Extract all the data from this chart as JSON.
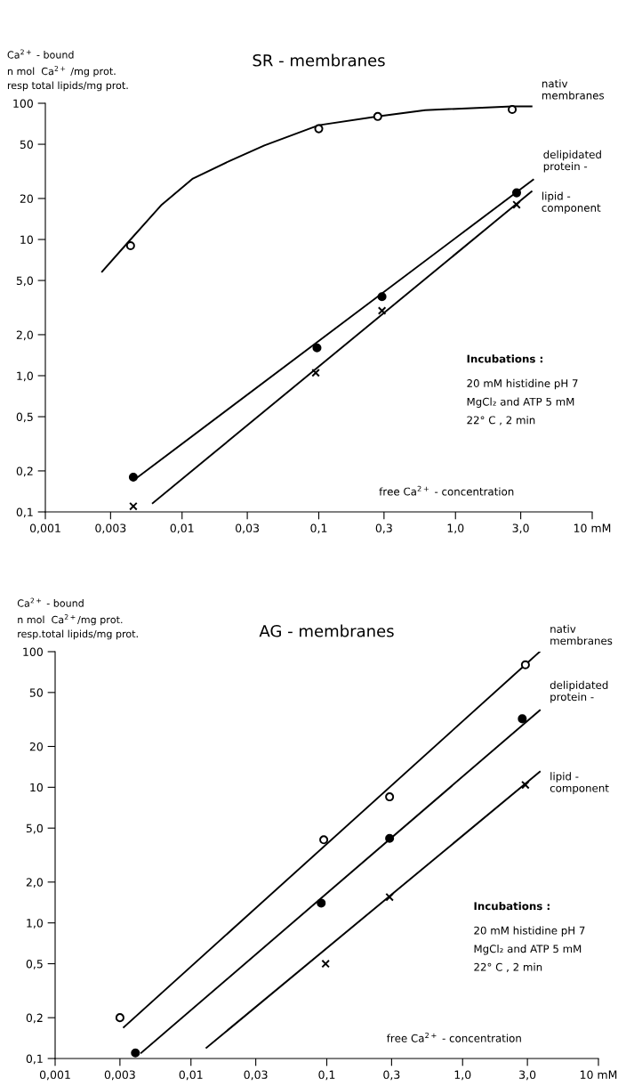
{
  "chart_data": [
    {
      "type": "line",
      "title": "SR - membranes",
      "ylabel": "Ca$^{2+}$ - bound\nn mol  Ca$^{2+}$ /mg prot.\nresp total lipids/mg prot.",
      "log": "xy",
      "grid": false,
      "legend": false,
      "xlim": [
        0.001,
        10
      ],
      "ylim": [
        0.1,
        100
      ],
      "xticks": [
        {
          "value": 0.001,
          "label": "0,001"
        },
        {
          "value": 0.003,
          "label": "0,003"
        },
        {
          "value": 0.01,
          "label": "0,01"
        },
        {
          "value": 0.03,
          "label": "0,03"
        },
        {
          "value": 0.1,
          "label": "0,1"
        },
        {
          "value": 0.3,
          "label": "0,3"
        },
        {
          "value": 1,
          "label": "1,0"
        },
        {
          "value": 3,
          "label": "3,0"
        },
        {
          "value": 10,
          "label": "10 mM"
        }
      ],
      "yticks": [
        {
          "value": 0.1,
          "label": "0,1"
        },
        {
          "value": 0.2,
          "label": "0,2"
        },
        {
          "value": 0.5,
          "label": "0,5"
        },
        {
          "value": 1,
          "label": "1,0"
        },
        {
          "value": 2,
          "label": "2,0"
        },
        {
          "value": 5,
          "label": "5,0"
        },
        10,
        20,
        50,
        100
      ],
      "annotations": [
        "Incubations :",
        "20 mM histidine pH 7",
        "MgCl₂ and ATP 5 mM",
        "22° C , 2 min",
        "free Ca$^{2+}$ - concentration"
      ],
      "series": [
        {
          "name": "nativ\nmembranes",
          "color": "#000000",
          "marker": "none",
          "x": [
            0.0026,
            0.0042,
            0.0071,
            0.012,
            0.0226,
            0.04,
            0.1,
            0.27,
            0.6,
            2.6,
            3.6
          ],
          "values": [
            5.8,
            10,
            18,
            28,
            38,
            49,
            69,
            80,
            89,
            95,
            95
          ]
        },
        {
          "name": "delipidated\nprotein -",
          "color": "#000000",
          "marker": "none",
          "x": [
            0.0044,
            3.7
          ],
          "values": [
            0.17,
            27.5
          ]
        },
        {
          "name": "lipid -\ncomponent",
          "color": "#000000",
          "marker": "none",
          "x": [
            0.0061,
            3.6
          ],
          "values": [
            0.116,
            22.5
          ]
        },
        {
          "type": "scatter",
          "color": "#000000",
          "marker": "circle",
          "x": [
            0.0042,
            0.1,
            0.27,
            2.6
          ],
          "values": [
            9,
            65,
            80,
            90
          ]
        },
        {
          "type": "scatter",
          "color": "#000000",
          "marker": "circle",
          "x": [
            0.0044,
            0.097,
            0.29,
            2.8
          ],
          "values": [
            0.18,
            1.6,
            3.8,
            22
          ]
        },
        {
          "type": "scatter",
          "color": "#000000",
          "marker": "cross",
          "x": [
            0.0044,
            0.095,
            0.29,
            2.8
          ],
          "values": [
            0.11,
            1.05,
            3.0,
            18
          ]
        }
      ]
    },
    {
      "type": "line",
      "title": "AG - membranes",
      "ylabel": "Ca$^{2+}$ - bound\nn mol  Ca$^{2+}$/mg prot.\nresp.total lipids/mg prot.",
      "log": "xy",
      "grid": false,
      "legend": false,
      "xlim": [
        0.001,
        10
      ],
      "ylim": [
        0.1,
        100
      ],
      "xticks": [
        {
          "value": 0.001,
          "label": "0,001"
        },
        {
          "value": 0.003,
          "label": "0,003"
        },
        {
          "value": 0.01,
          "label": "0,01"
        },
        {
          "value": 0.03,
          "label": "0,03"
        },
        {
          "value": 0.1,
          "label": "0,1"
        },
        {
          "value": 0.3,
          "label": "0,3"
        },
        {
          "value": 1,
          "label": "1,0"
        },
        {
          "value": 3,
          "label": "3,0"
        },
        {
          "value": 10,
          "label": "10 mM"
        }
      ],
      "yticks": [
        {
          "value": 0.1,
          "label": "0,1"
        },
        {
          "value": 0.2,
          "label": "0,2"
        },
        {
          "value": 0.5,
          "label": "0,5"
        },
        {
          "value": 1,
          "label": "1,0"
        },
        {
          "value": 2,
          "label": "2,0"
        },
        {
          "value": 5,
          "label": "5,0"
        },
        10,
        20,
        50,
        100
      ],
      "annotations": [
        "Incubations :",
        "20 mM histidine pH 7",
        "MgCl₂ and ATP 5 mM",
        "22° C , 2 min",
        "free Ca$^{2+}$ - concentration"
      ],
      "series": [
        {
          "name": "nativ\nmembranes",
          "color": "#000000",
          "marker": "none",
          "x": [
            0.0032,
            3.7
          ],
          "values": [
            0.17,
            100
          ]
        },
        {
          "name": "delipidated\nprotein -",
          "color": "#000000",
          "marker": "none",
          "x": [
            0.0043,
            3.7
          ],
          "values": [
            0.11,
            37
          ]
        },
        {
          "name": "lipid -\ncomponent",
          "color": "#000000",
          "marker": "none",
          "x": [
            0.013,
            3.7
          ],
          "values": [
            0.12,
            13
          ]
        },
        {
          "type": "scatter",
          "color": "#000000",
          "marker": "circle",
          "x": [
            0.003,
            0.095,
            0.29,
            2.9
          ],
          "values": [
            0.2,
            4.1,
            8.5,
            80
          ]
        },
        {
          "type": "scatter",
          "color": "#000000",
          "marker": "circle",
          "x": [
            0.0039,
            0.091,
            0.29,
            2.75
          ],
          "values": [
            0.11,
            1.4,
            4.2,
            32
          ]
        },
        {
          "type": "scatter",
          "color": "#000000",
          "marker": "cross",
          "x": [
            0.098,
            0.29,
            2.9
          ],
          "values": [
            0.5,
            1.55,
            10.4
          ]
        }
      ]
    }
  ]
}
